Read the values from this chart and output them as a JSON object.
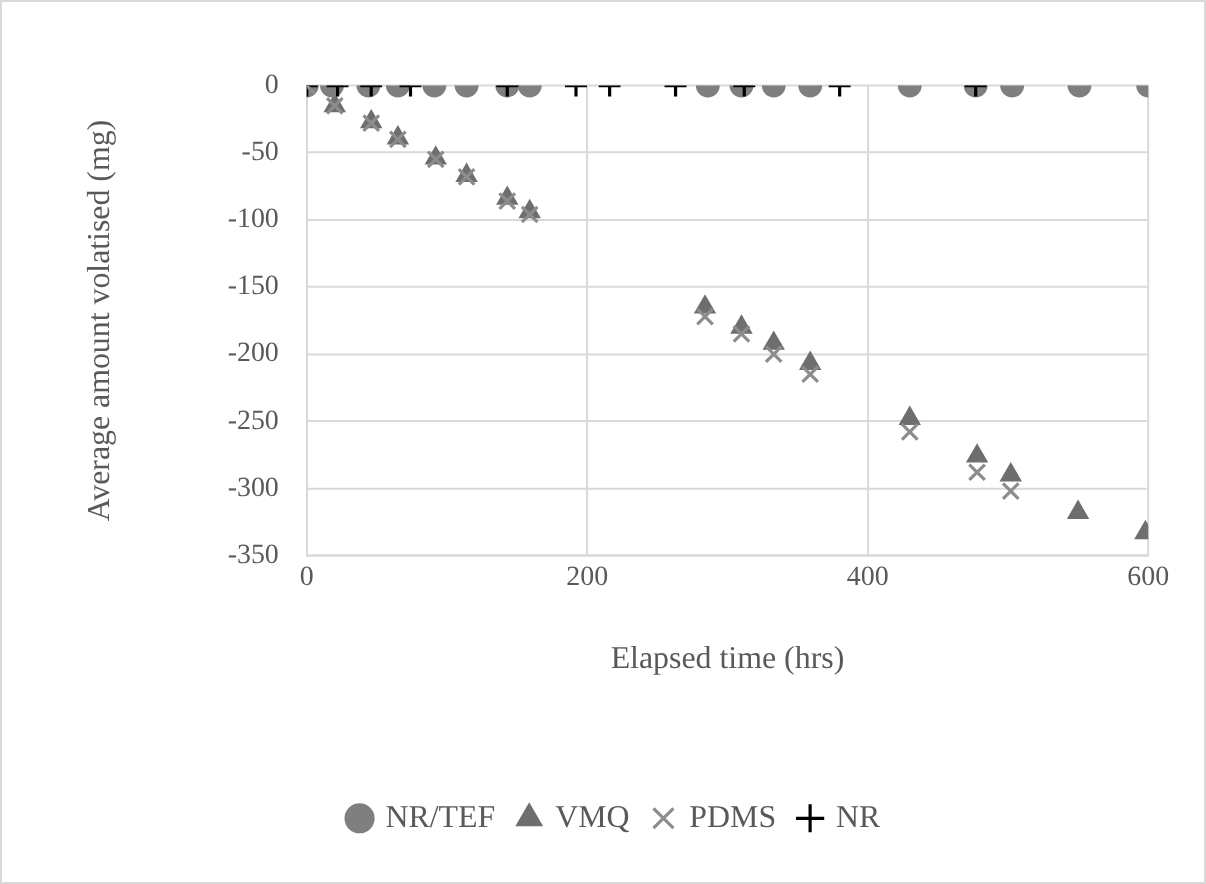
{
  "chart_data": {
    "type": "scatter",
    "xlabel": "Elapsed time (hrs)",
    "ylabel": "Average amount volatised (mg)",
    "xlim": [
      0,
      600
    ],
    "xticks": [
      0,
      200,
      400,
      600
    ],
    "ylim": [
      -350,
      0
    ],
    "yticks": [
      0,
      -50,
      -100,
      -150,
      -200,
      -250,
      -300,
      -350
    ],
    "grid": true,
    "legend": "bottom",
    "series": [
      {
        "name": "NR/TEF",
        "color": "#7f7f7f",
        "marker": "circle",
        "x": [
          0,
          18,
          44,
          65,
          91,
          114,
          143,
          159,
          286,
          310,
          333,
          359,
          430,
          477,
          503,
          551,
          600
        ],
        "values": [
          0,
          0,
          0,
          0,
          0,
          0,
          0,
          0,
          0,
          0,
          0,
          0,
          0,
          0,
          0,
          0,
          0
        ]
      },
      {
        "name": "VMQ",
        "color": "#6e6e6e",
        "marker": "triangle",
        "x": [
          20,
          46,
          65,
          92,
          114,
          143,
          159,
          284,
          310,
          333,
          359,
          430,
          478,
          502,
          550,
          598
        ],
        "values": [
          -15,
          -27,
          -39,
          -54,
          -67,
          -84,
          -94,
          -165,
          -180,
          -192,
          -207,
          -248,
          -276,
          -290,
          -318,
          -333
        ]
      },
      {
        "name": "PDMS",
        "color": "#8c8c8c",
        "marker": "cross",
        "x": [
          0,
          20,
          46,
          65,
          92,
          114,
          143,
          159,
          284,
          310,
          333,
          359,
          430,
          478,
          502
        ],
        "values": [
          0,
          -15,
          -28,
          -40,
          -55,
          -68,
          -86,
          -96,
          -172,
          -185,
          -200,
          -215,
          -258,
          -288,
          -302
        ]
      },
      {
        "name": "NR",
        "color": "#000000",
        "marker": "plus",
        "x": [
          0,
          22,
          46,
          74,
          143,
          192,
          216,
          263,
          312,
          380,
          477
        ],
        "values": [
          0,
          0,
          0,
          0,
          0,
          0,
          0,
          0,
          0,
          0,
          0
        ]
      }
    ]
  }
}
